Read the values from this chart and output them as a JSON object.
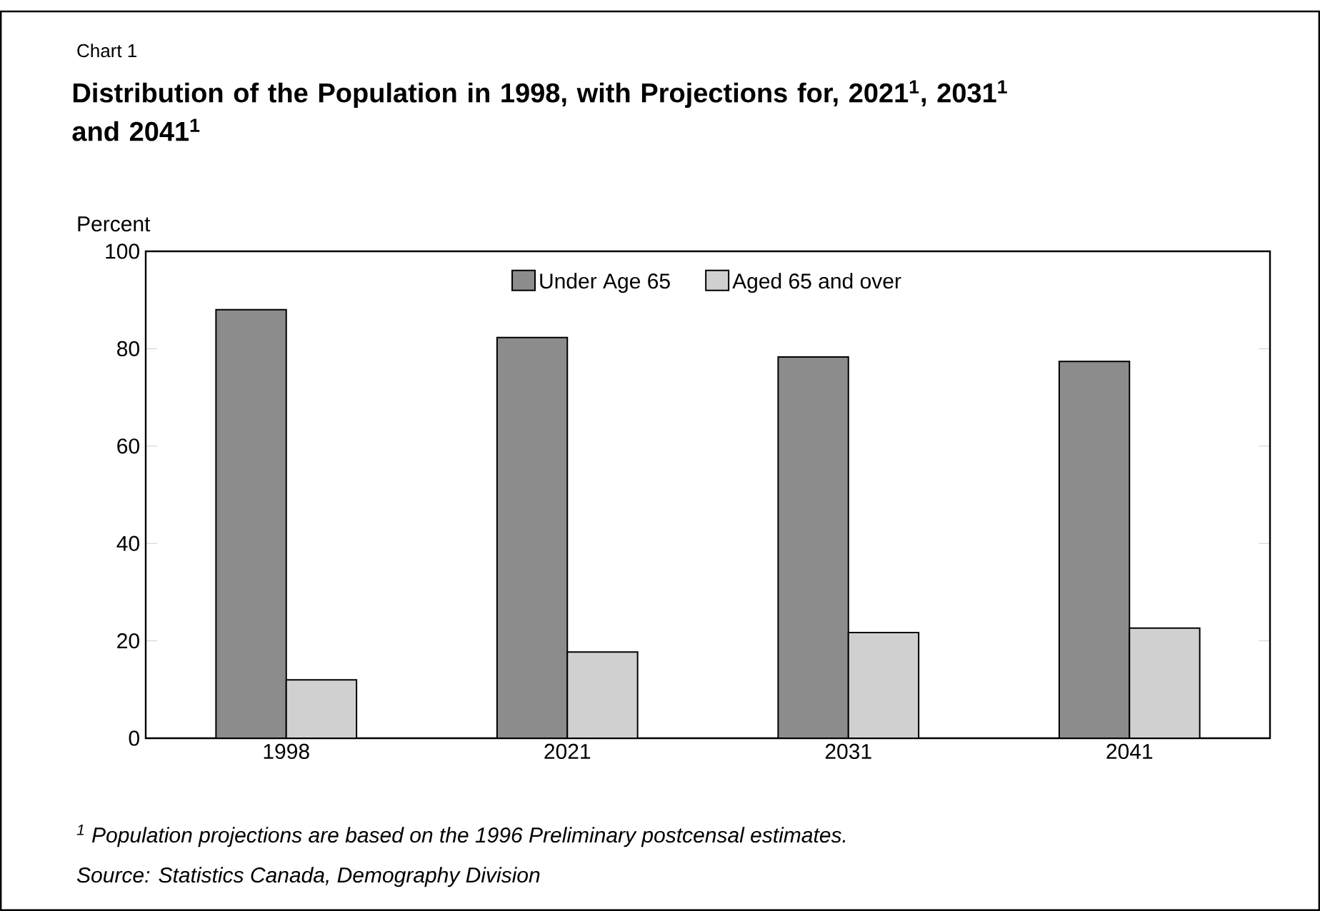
{
  "chart_data": {
    "type": "bar",
    "subtitle": "Chart 1",
    "title": "Distribution of the Population in 1998, with Projections for, 2021$^{1}$, 2031$^{1}$ and 2041$^{1}$",
    "ylabel": "Percent",
    "categories": [
      "1998",
      "2021",
      "2031",
      "2041"
    ],
    "series": [
      {
        "name": "Under Age 65",
        "color": "#8c8c8c",
        "values": [
          88,
          82.3,
          78.3,
          77.4
        ]
      },
      {
        "name": "Aged 65 and over",
        "color": "#d0d0d0",
        "values": [
          12,
          17.7,
          21.7,
          22.6
        ]
      }
    ],
    "ylim": [
      0,
      100
    ],
    "yticks": [
      0,
      20,
      40,
      60,
      80,
      100
    ],
    "grid": false,
    "legend": "top",
    "annotations": [
      "$^{1}$ Population projections are based on the 1996 Preliminary postcensal estimates.",
      "Source: Statistics Canada, Demography Division"
    ]
  }
}
